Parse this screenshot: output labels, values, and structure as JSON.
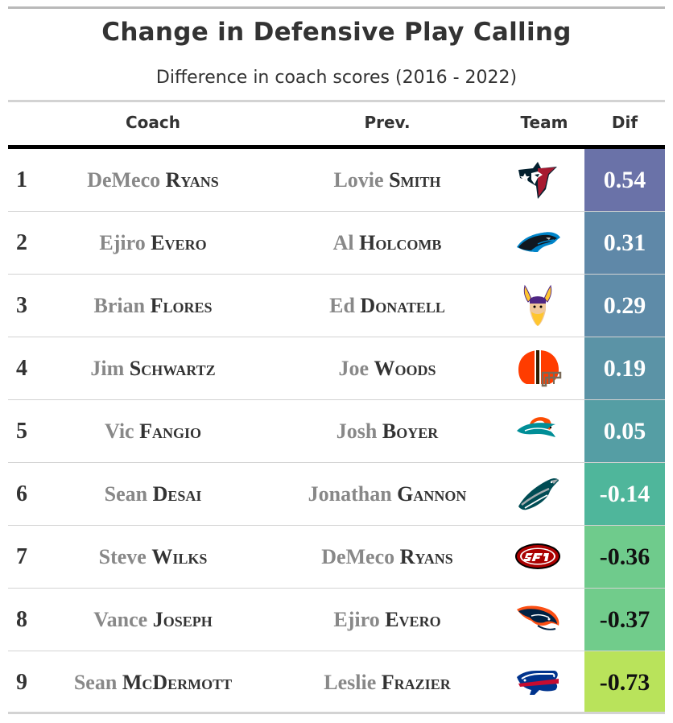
{
  "title": "Change in Defensive Play Calling",
  "subtitle": "Difference in coach scores (2016 - 2022)",
  "columns": {
    "coach": "Coach",
    "prev": "Prev.",
    "team": "Team",
    "dif": "Dif"
  },
  "rows": [
    {
      "rank": "1",
      "coach_first": "DeMeco",
      "coach_last": "Ryans",
      "prev_first": "Lovie",
      "prev_last": "Smith",
      "team_logo": "houston-texans-logo",
      "dif": "0.54",
      "dif_bg": "#6a72a8",
      "dif_fg": "#ffffff"
    },
    {
      "rank": "2",
      "coach_first": "Ejiro",
      "coach_last": "Evero",
      "prev_first": "Al",
      "prev_last": "Holcomb",
      "team_logo": "carolina-panthers-logo",
      "dif": "0.31",
      "dif_bg": "#5f88a8",
      "dif_fg": "#ffffff"
    },
    {
      "rank": "3",
      "coach_first": "Brian",
      "coach_last": "Flores",
      "prev_first": "Ed",
      "prev_last": "Donatell",
      "team_logo": "minnesota-vikings-logo",
      "dif": "0.29",
      "dif_bg": "#5e8ba8",
      "dif_fg": "#ffffff"
    },
    {
      "rank": "4",
      "coach_first": "Jim",
      "coach_last": "Schwartz",
      "prev_first": "Joe",
      "prev_last": "Woods",
      "team_logo": "cleveland-browns-logo",
      "dif": "0.19",
      "dif_bg": "#5b93a6",
      "dif_fg": "#ffffff"
    },
    {
      "rank": "5",
      "coach_first": "Vic",
      "coach_last": "Fangio",
      "prev_first": "Josh",
      "prev_last": "Boyer",
      "team_logo": "miami-dolphins-logo",
      "dif": "0.05",
      "dif_bg": "#559ea4",
      "dif_fg": "#ffffff"
    },
    {
      "rank": "6",
      "coach_first": "Sean",
      "coach_last": "Desai",
      "prev_first": "Jonathan",
      "prev_last": "Gannon",
      "team_logo": "philadelphia-eagles-logo",
      "dif": "-0.14",
      "dif_bg": "#4fb69b",
      "dif_fg": "#ffffff"
    },
    {
      "rank": "7",
      "coach_first": "Steve",
      "coach_last": "Wilks",
      "prev_first": "DeMeco",
      "prev_last": "Ryans",
      "team_logo": "san-francisco-49ers-logo",
      "dif": "-0.36",
      "dif_bg": "#6fcb8c",
      "dif_fg": "#111111"
    },
    {
      "rank": "8",
      "coach_first": "Vance",
      "coach_last": "Joseph",
      "prev_first": "Ejiro",
      "prev_last": "Evero",
      "team_logo": "denver-broncos-logo",
      "dif": "-0.37",
      "dif_bg": "#71cc8b",
      "dif_fg": "#111111"
    },
    {
      "rank": "9",
      "coach_first": "Sean",
      "coach_last": "McDermott",
      "prev_first": "Leslie",
      "prev_last": "Frazier",
      "team_logo": "buffalo-bills-logo",
      "dif": "-0.73",
      "dif_bg": "#b9e35b",
      "dif_fg": "#111111"
    }
  ]
}
